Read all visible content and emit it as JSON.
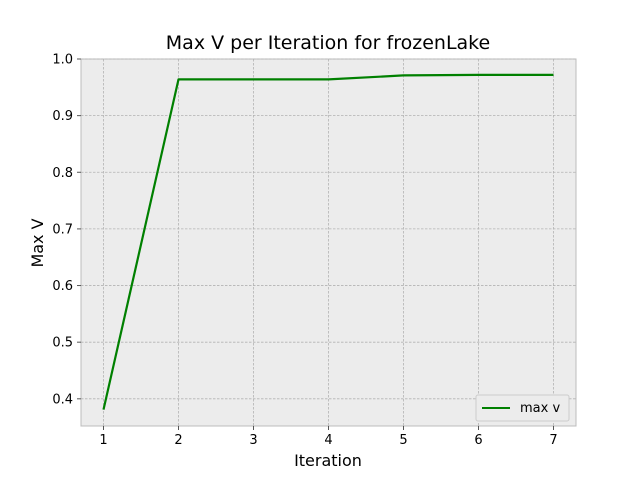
{
  "chart_data": {
    "type": "line",
    "title": "Max V per Iteration for frozenLake",
    "xlabel": "Iteration",
    "ylabel": "Max V",
    "x": [
      1,
      2,
      3,
      4,
      5,
      6,
      7
    ],
    "series": [
      {
        "name": "max v",
        "color": "#008000",
        "values": [
          0.381,
          0.964,
          0.964,
          0.964,
          0.971,
          0.972,
          0.972
        ]
      }
    ],
    "xlim": [
      0.7,
      7.3
    ],
    "ylim": [
      0.352,
      1.0
    ],
    "xticks": [
      1,
      2,
      3,
      4,
      5,
      6,
      7
    ],
    "yticks": [
      0.4,
      0.5,
      0.6,
      0.7,
      0.8,
      0.9,
      1.0
    ],
    "xtick_labels": [
      "1",
      "2",
      "3",
      "4",
      "5",
      "6",
      "7"
    ],
    "ytick_labels": [
      "0.4",
      "0.5",
      "0.6",
      "0.7",
      "0.8",
      "0.9",
      "1.0"
    ],
    "grid": true,
    "grid_style": "dashed",
    "plot_background": "#ececec",
    "legend_position": "lower-right"
  }
}
